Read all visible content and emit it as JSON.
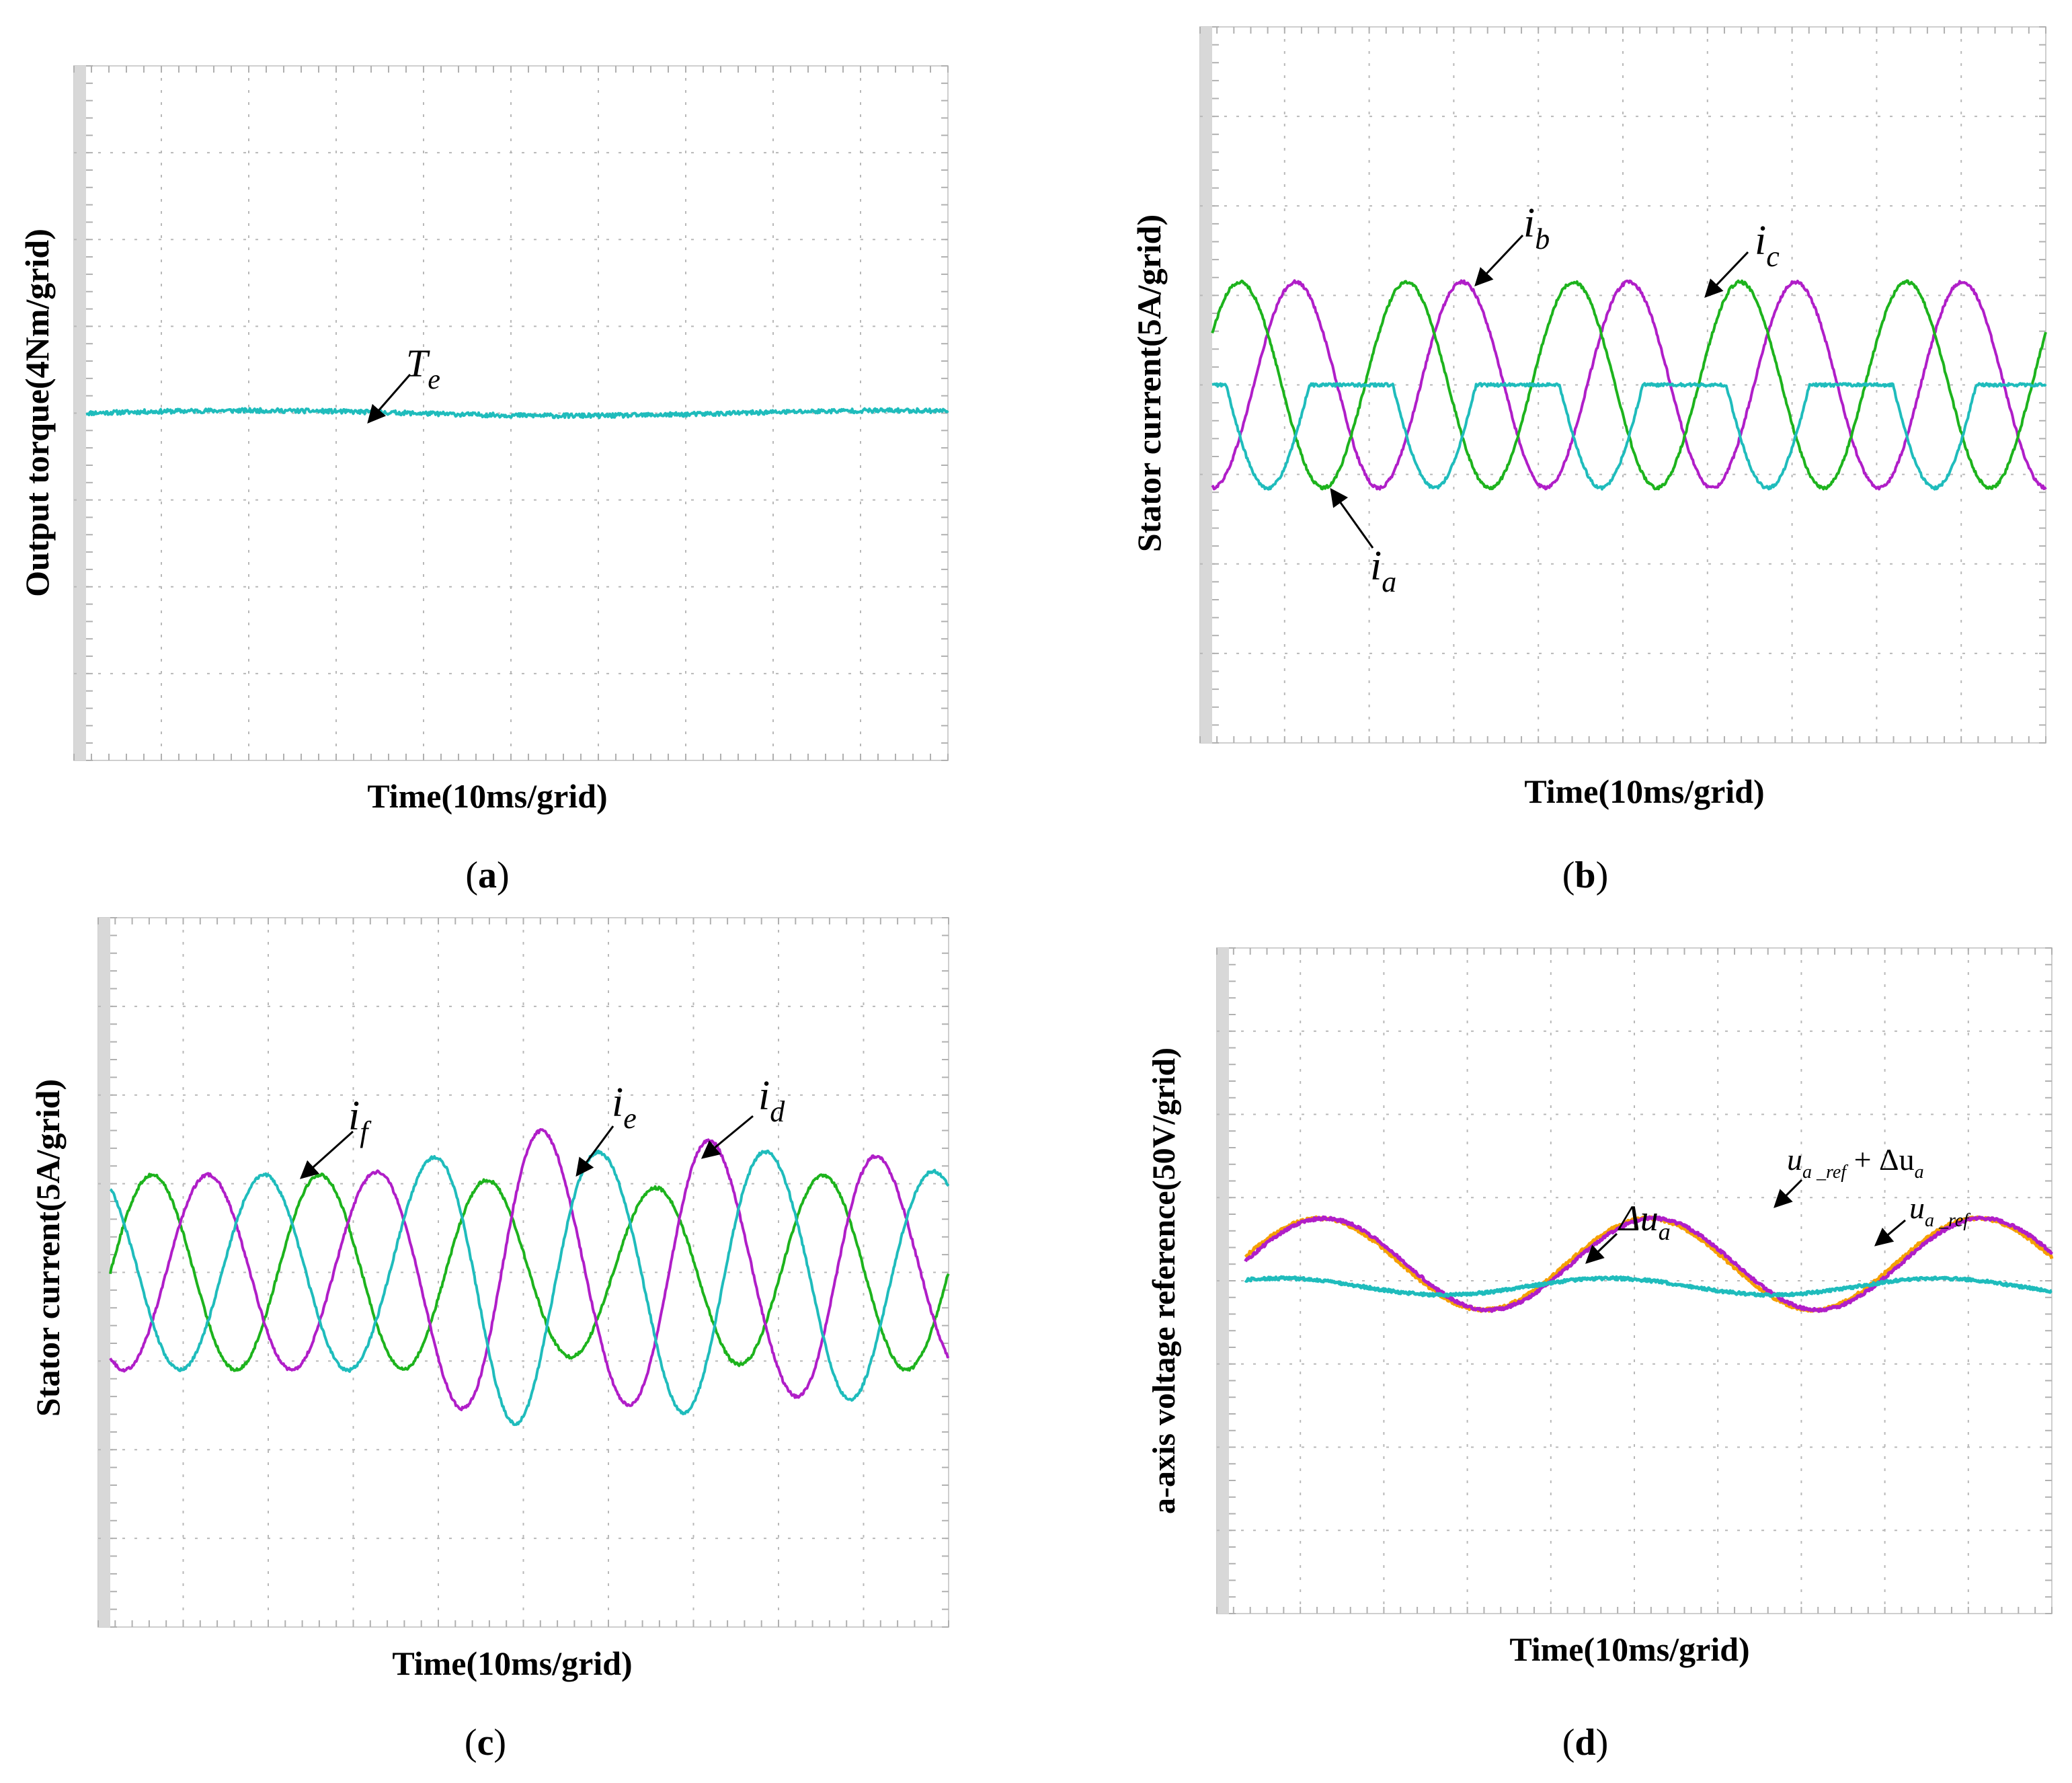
{
  "chart_data": [
    {
      "id": "a",
      "type": "line",
      "panel_label": "(a)",
      "tag_letter": "a",
      "ylabel": "Output torque(4Nm/grid)",
      "xlabel": "Time(10ms/grid)",
      "x_divisions": 10,
      "y_divisions": 8,
      "xlim": [
        0,
        100
      ],
      "colors": {
        "cyan": "#1fbcbc"
      },
      "series": [
        {
          "name": "Te",
          "color": "#1fbcbc",
          "kind": "dc",
          "level_div": 4.0,
          "noise": 0.05
        }
      ],
      "annotations": [
        {
          "symbol": "T",
          "sub": "e"
        }
      ]
    },
    {
      "id": "b",
      "type": "line",
      "panel_label": "(b)",
      "tag_letter": "b",
      "ylabel": "Stator current(5A/grid)",
      "xlabel": "Time(10ms/grid)",
      "x_divisions": 10,
      "y_divisions": 8,
      "xlim": [
        0,
        100
      ],
      "colors": {
        "magenta": "#b01ec8",
        "green": "#1db31d",
        "cyan": "#1fbcbc"
      },
      "series": [
        {
          "name": "ib",
          "color": "#b01ec8",
          "kind": "sine",
          "center_div": 4.0,
          "amp_div": 1.15,
          "period_ms": 20,
          "phase": -1.5708
        },
        {
          "name": "ic",
          "color": "#1db31d",
          "kind": "sine",
          "center_div": 4.0,
          "amp_div": 1.15,
          "period_ms": 20,
          "phase": 0.5236
        },
        {
          "name": "ia",
          "color": "#1fbcbc",
          "kind": "clipped_sine",
          "center_div": 4.0,
          "amp_div": 1.15,
          "period_ms": 20,
          "phase": 2.618
        }
      ],
      "annotations": [
        {
          "symbol": "i",
          "sub": "b"
        },
        {
          "symbol": "i",
          "sub": "c"
        },
        {
          "symbol": "i",
          "sub": "a"
        }
      ]
    },
    {
      "id": "c",
      "type": "line",
      "panel_label": "(c)",
      "tag_letter": "c",
      "ylabel": "Stator current(5A/grid)",
      "xlabel": "Time(10ms/grid)",
      "x_divisions": 10,
      "y_divisions": 8,
      "xlim": [
        0,
        100
      ],
      "colors": {
        "magenta": "#b01ec8",
        "green": "#1db31d",
        "cyan": "#1fbcbc"
      },
      "series": [
        {
          "name": "if",
          "color": "#1db31d",
          "kind": "sine",
          "center_div": 4.0,
          "amp_div": 1.1,
          "period_ms": 20,
          "phase": 0.0,
          "env": "green"
        },
        {
          "name": "ie",
          "color": "#b01ec8",
          "kind": "sine",
          "center_div": 4.0,
          "amp_div": 1.1,
          "period_ms": 20,
          "phase": -2.0944,
          "env": "mag"
        },
        {
          "name": "id",
          "color": "#1fbcbc",
          "kind": "sine",
          "center_div": 4.0,
          "amp_div": 1.1,
          "period_ms": 20,
          "phase": 2.0944,
          "env": "cyan"
        }
      ],
      "annotations": [
        {
          "symbol": "i",
          "sub": "f"
        },
        {
          "symbol": "i",
          "sub": "e"
        },
        {
          "symbol": "i",
          "sub": "d"
        }
      ]
    },
    {
      "id": "d",
      "type": "line",
      "panel_label": "(d)",
      "tag_letter": "d",
      "ylabel": "a-axis voltage reference(50V/grid)",
      "xlabel": "Time(10ms/grid)",
      "x_divisions": 10,
      "y_divisions": 8,
      "xlim": [
        0,
        100
      ],
      "colors": {
        "magenta": "#b01ec8",
        "orange": "#f5a000",
        "cyan": "#1fbcbc"
      },
      "series": [
        {
          "name": "ua_ref",
          "color": "#f5a000",
          "kind": "sine",
          "center_div": 4.2,
          "amp_div": 0.55,
          "period_ms": 40,
          "phase": -0.15
        },
        {
          "name": "ua_ref + Δua",
          "color": "#b01ec8",
          "kind": "sine",
          "center_div": 4.2,
          "amp_div": 0.55,
          "period_ms": 40,
          "phase": -0.25
        },
        {
          "name": "Δua",
          "color": "#1fbcbc",
          "kind": "sine",
          "center_div": 3.93,
          "amp_div": 0.1,
          "period_ms": 40,
          "phase": 0.6
        }
      ],
      "annotations": [
        {
          "symbol": "Δu",
          "sub": "a"
        },
        {
          "symbol": "u",
          "sub": "a _ref",
          "tail": " + Δu",
          "tail_sub": "a"
        },
        {
          "symbol": "u",
          "sub": "a _ref"
        }
      ]
    }
  ]
}
